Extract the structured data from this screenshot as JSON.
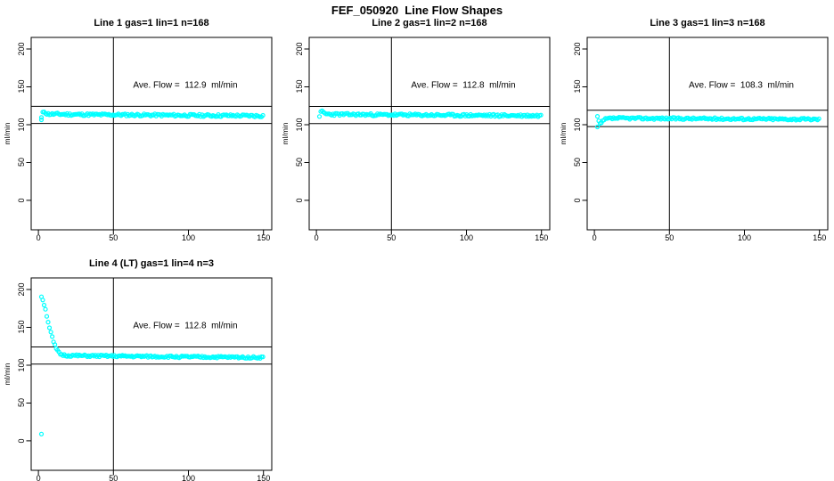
{
  "page_title": "FEF_050920  Line Flow Shapes",
  "colors": {
    "point": "#00FFFF",
    "axis": "#000000",
    "background": "#FFFFFF"
  },
  "chart_data": [
    {
      "type": "scatter",
      "title": "Line 1 gas=1 lin=1 n=168",
      "annotation": "Ave. Flow =  112.9  ml/min",
      "ave_flow": 112.9,
      "n": 168,
      "ylabel": "ml/min",
      "xlabel": "",
      "x_ticks": [
        0,
        50,
        100,
        150
      ],
      "y_ticks": [
        0,
        50,
        100,
        150,
        200
      ],
      "xlim": [
        -4.8,
        155.5
      ],
      "ylim": [
        -38.9,
        215.3
      ],
      "grid": false,
      "vline_x": 50,
      "ref_lines": [
        124.2,
        101.6
      ],
      "profile": [
        [
          2,
          109
        ],
        [
          2.8,
          115
        ],
        [
          3.5,
          118
        ],
        [
          4.5,
          116.5
        ],
        [
          5.5,
          114.5
        ],
        [
          7,
          114
        ],
        [
          10,
          114
        ],
        [
          20,
          113.6
        ],
        [
          40,
          113.2
        ],
        [
          70,
          112.8
        ],
        [
          100,
          112.3
        ],
        [
          130,
          112
        ],
        [
          150,
          111.7
        ]
      ],
      "extra_points": [
        [
          2,
          106.5
        ]
      ],
      "noise_amp": 1.6,
      "seed": 11
    },
    {
      "type": "scatter",
      "title": "Line 2 gas=1 lin=2 n=168",
      "annotation": "Ave. Flow =  112.8  ml/min",
      "ave_flow": 112.8,
      "n": 168,
      "ylabel": "ml/min",
      "xlabel": "",
      "x_ticks": [
        0,
        50,
        100,
        150
      ],
      "y_ticks": [
        0,
        50,
        100,
        150,
        200
      ],
      "xlim": [
        -4.8,
        155.5
      ],
      "ylim": [
        -38.9,
        215.3
      ],
      "grid": false,
      "vline_x": 50,
      "ref_lines": [
        124.1,
        101.5
      ],
      "profile": [
        [
          2,
          112
        ],
        [
          3,
          116.5
        ],
        [
          4,
          117.5
        ],
        [
          5,
          115.5
        ],
        [
          6.5,
          114.2
        ],
        [
          9,
          113.8
        ],
        [
          20,
          113.5
        ],
        [
          50,
          113
        ],
        [
          90,
          112.5
        ],
        [
          130,
          112.1
        ],
        [
          150,
          111.9
        ]
      ],
      "extra_points": [],
      "noise_amp": 1.6,
      "seed": 23
    },
    {
      "type": "scatter",
      "title": "Line 3 gas=1 lin=3 n=168",
      "annotation": "Ave. Flow =  108.3  ml/min",
      "ave_flow": 108.3,
      "n": 168,
      "ylabel": "ml/min",
      "xlabel": "",
      "x_ticks": [
        0,
        50,
        100,
        150
      ],
      "y_ticks": [
        0,
        50,
        100,
        150,
        200
      ],
      "xlim": [
        -4.8,
        155.5
      ],
      "ylim": [
        -38.9,
        215.3
      ],
      "grid": false,
      "vline_x": 50,
      "ref_lines": [
        119.1,
        97.5
      ],
      "profile": [
        [
          2,
          110.5
        ],
        [
          3,
          104
        ],
        [
          4,
          99.5
        ],
        [
          5,
          103
        ],
        [
          6.5,
          106.5
        ],
        [
          9,
          108
        ],
        [
          15,
          108.6
        ],
        [
          40,
          108.3
        ],
        [
          80,
          107.9
        ],
        [
          120,
          107.5
        ],
        [
          150,
          107.1
        ]
      ],
      "extra_points": [
        [
          2,
          97
        ]
      ],
      "noise_amp": 1.4,
      "seed": 37
    },
    {
      "type": "scatter",
      "title": "Line 4 (LT) gas=1 lin=4 n=3",
      "annotation": "Ave. Flow =  112.8  ml/min",
      "ave_flow": 112.8,
      "n": 3,
      "ylabel": "ml/min",
      "xlabel": "",
      "x_ticks": [
        0,
        50,
        100,
        150
      ],
      "y_ticks": [
        0,
        50,
        100,
        150,
        200
      ],
      "xlim": [
        -4.8,
        155.5
      ],
      "ylim": [
        -38.9,
        215.3
      ],
      "grid": false,
      "vline_x": 50,
      "ref_lines": [
        124.1,
        101.5
      ],
      "profile": [
        [
          2,
          191
        ],
        [
          3,
          186
        ],
        [
          4,
          179
        ],
        [
          5,
          171
        ],
        [
          6,
          162
        ],
        [
          7,
          153
        ],
        [
          8,
          145
        ],
        [
          9,
          138
        ],
        [
          10,
          131
        ],
        [
          11,
          126
        ],
        [
          12,
          121.5
        ],
        [
          13,
          118
        ],
        [
          14,
          115.5
        ],
        [
          16,
          113.5
        ],
        [
          19,
          112.8
        ],
        [
          30,
          112.4
        ],
        [
          60,
          111.8
        ],
        [
          100,
          111
        ],
        [
          150,
          110.2
        ]
      ],
      "extra_points": [
        [
          2,
          9
        ]
      ],
      "noise_amp": 1.3,
      "seed": 51
    }
  ]
}
